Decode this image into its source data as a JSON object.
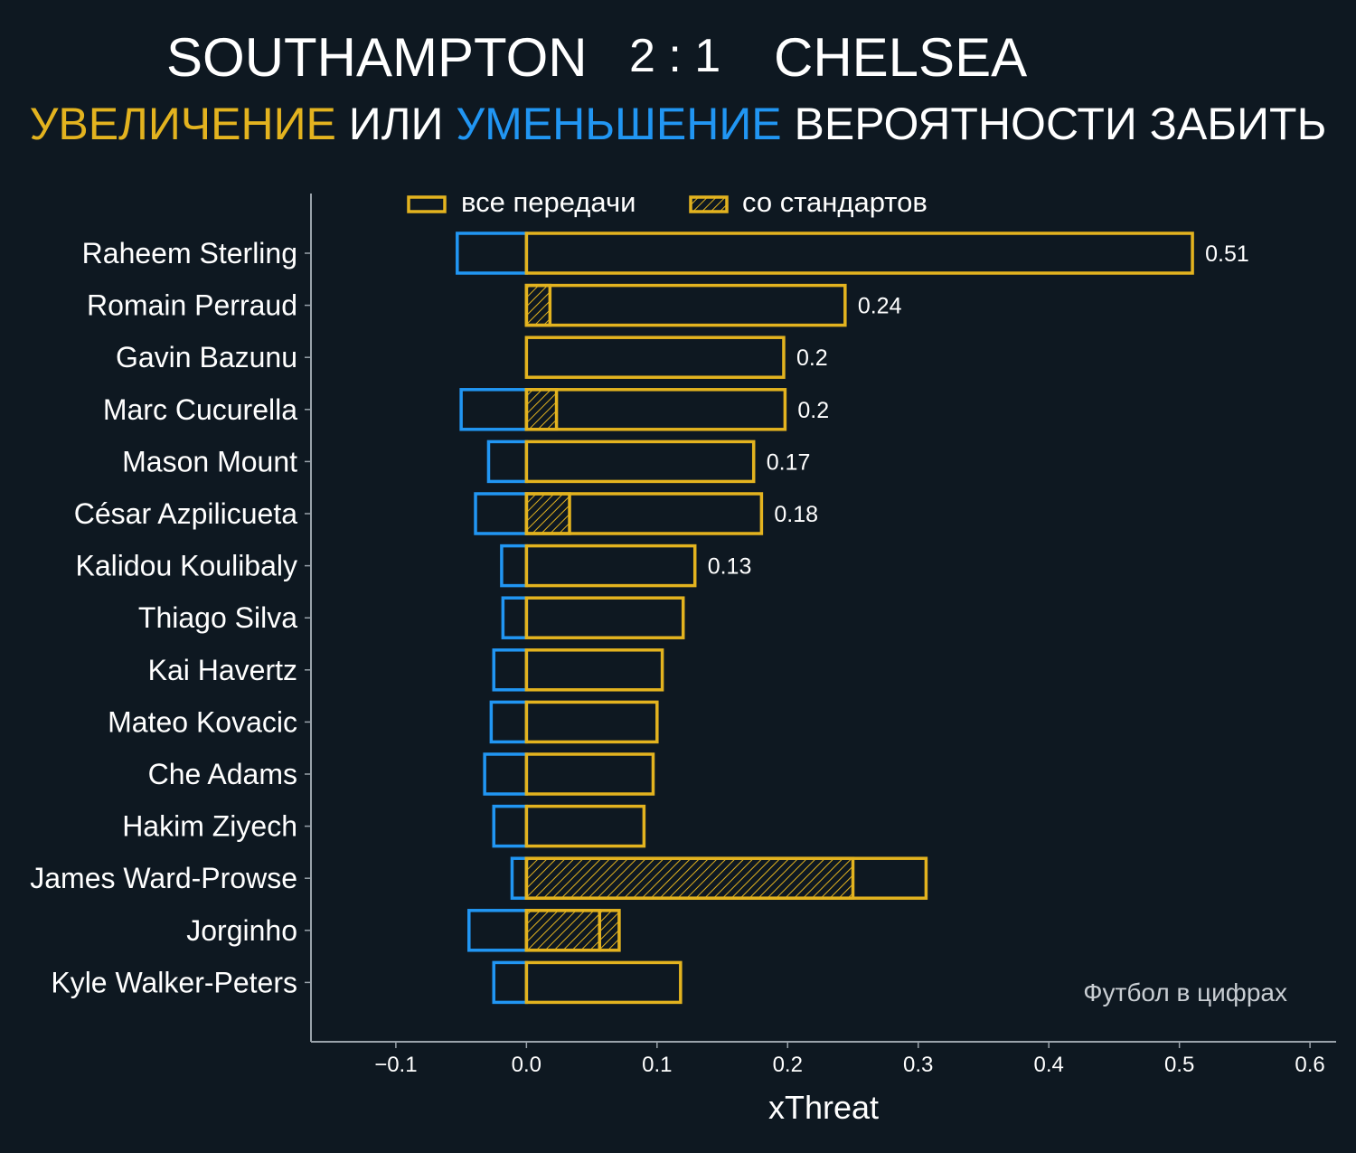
{
  "header": {
    "home_team": "SOUTHAMPTON",
    "score": "2 : 1",
    "away_team": "CHELSEA",
    "subtitle_up": "УВЕЛИЧЕНИЕ",
    "subtitle_or": "ИЛИ",
    "subtitle_down": "УМЕНЬШЕНИЕ",
    "subtitle_rest": "ВЕРОЯТНОСТИ ЗАБИТЬ"
  },
  "colors": {
    "background": "#0e1821",
    "increase": "#e3b31f",
    "decrease": "#2196f3",
    "axis": "#9aa3ab",
    "text": "#ffffff",
    "watermark": "#c9ced3"
  },
  "watermark": "Футбол в цифрах",
  "chart_data": {
    "type": "bar",
    "orientation": "horizontal",
    "xlabel": "xThreat",
    "ylabel": "",
    "xlim": [
      -0.165,
      0.62
    ],
    "xticks": [
      -0.1,
      0.0,
      0.1,
      0.2,
      0.3,
      0.4,
      0.5,
      0.6
    ],
    "xtick_labels": [
      "−0.1",
      "0.0",
      "0.1",
      "0.2",
      "0.3",
      "0.4",
      "0.5",
      "0.6"
    ],
    "grid": false,
    "legend_position": "top",
    "legend": [
      {
        "label": "все передачи",
        "style": "outline"
      },
      {
        "label": "со стандартов",
        "style": "hatched"
      }
    ],
    "categories": [
      "Raheem Sterling",
      "Romain Perraud",
      "Gavin Bazunu",
      "Marc Cucurella",
      "Mason Mount",
      "César Azpilicueta",
      "Kalidou Koulibaly",
      "Thiago Silva",
      "Kai Havertz",
      "Mateo Kovacic",
      "Che Adams",
      "Hakim Ziyech",
      "James Ward-Prowse",
      "Jorginho",
      "Kyle Walker-Peters"
    ],
    "series": [
      {
        "name": "увеличение",
        "values": [
          0.51,
          0.244,
          0.197,
          0.198,
          0.174,
          0.18,
          0.129,
          0.12,
          0.104,
          0.1,
          0.097,
          0.09,
          0.306,
          0.056,
          0.118
        ]
      },
      {
        "name": "уменьшение",
        "values": [
          -0.053,
          0.0,
          0.0,
          -0.05,
          -0.029,
          -0.039,
          -0.019,
          -0.018,
          -0.025,
          -0.027,
          -0.032,
          -0.025,
          -0.011,
          -0.044,
          -0.025
        ]
      },
      {
        "name": "со стандартов",
        "values": [
          0.0,
          0.018,
          0.0,
          0.023,
          0.0,
          0.033,
          0.0,
          0.0,
          0.0,
          0.0,
          0.0,
          0.0,
          0.25,
          0.071,
          0.0
        ]
      }
    ],
    "data_labels": [
      "0.51",
      "0.24",
      "0.2",
      "0.2",
      "0.17",
      "0.18",
      "0.13",
      "",
      "",
      "",
      "",
      "",
      "",
      "",
      ""
    ]
  }
}
